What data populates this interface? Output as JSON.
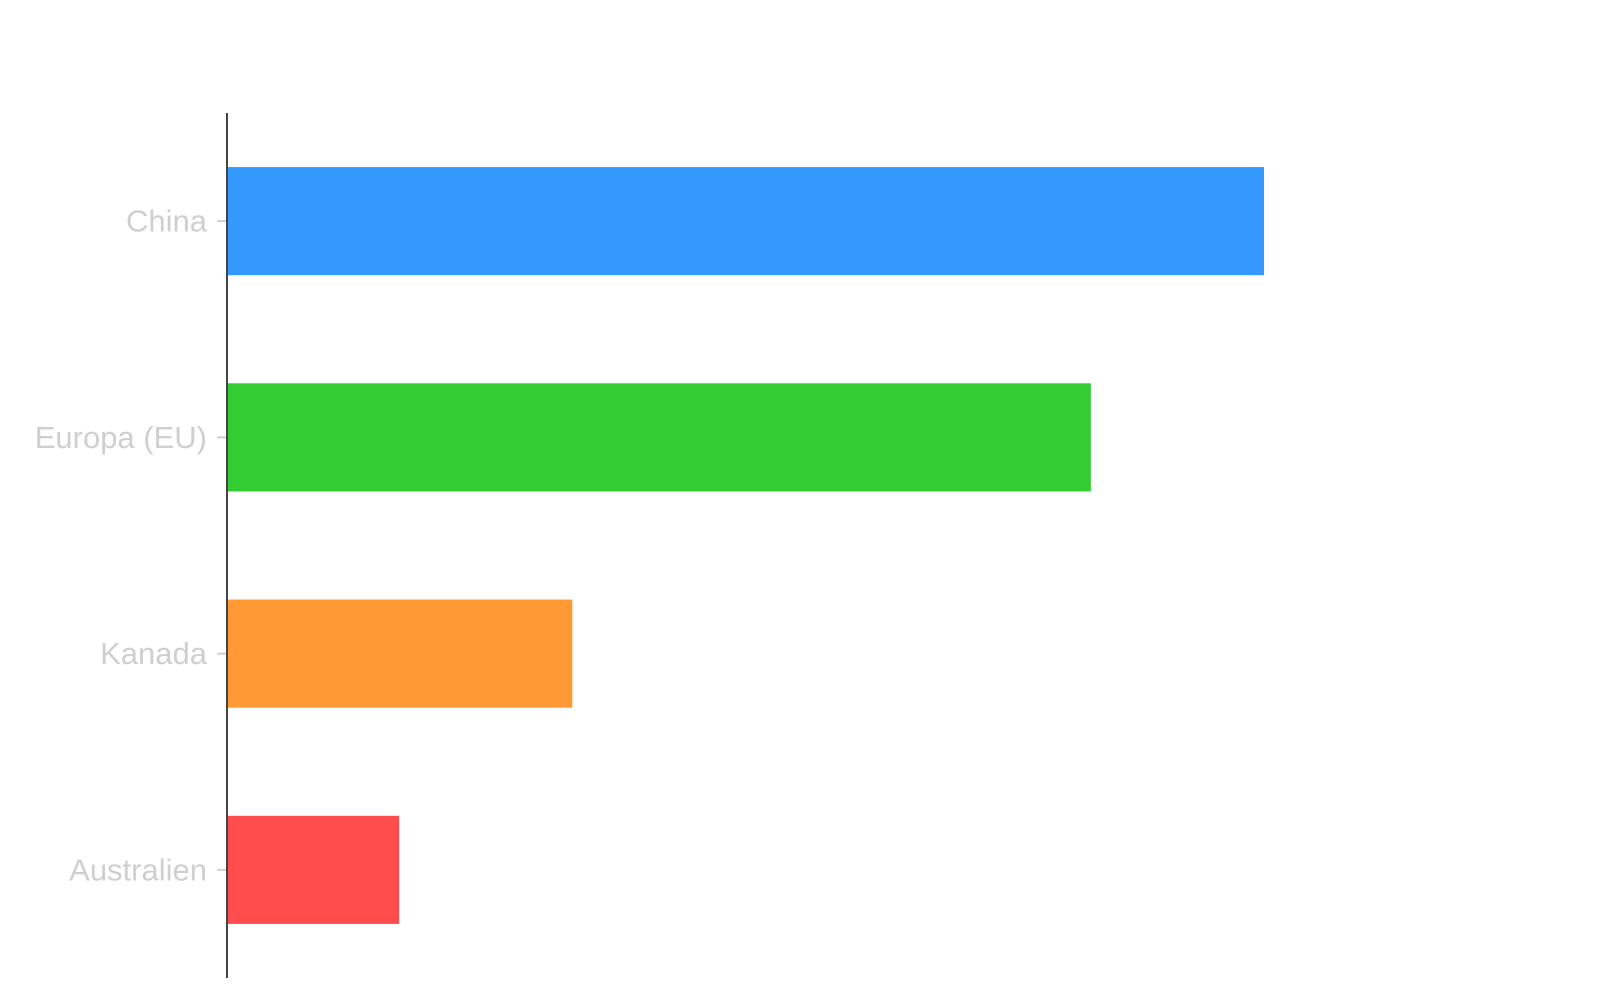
{
  "chart_data": {
    "type": "bar",
    "orientation": "horizontal",
    "categories": [
      "China",
      "Europa (EU)",
      "Kanada",
      "Australien"
    ],
    "values": [
      100,
      83.3,
      33.3,
      16.6
    ],
    "colors": [
      "#3399ff",
      "#33cc33",
      "#ff9933",
      "#ff4d4d"
    ],
    "title": "",
    "xlabel": "",
    "ylabel": "",
    "xlim": [
      0,
      135
    ],
    "grid": false,
    "legend": "none",
    "axis_color": "#444444",
    "tick_label_color": "#cfcfcf"
  }
}
